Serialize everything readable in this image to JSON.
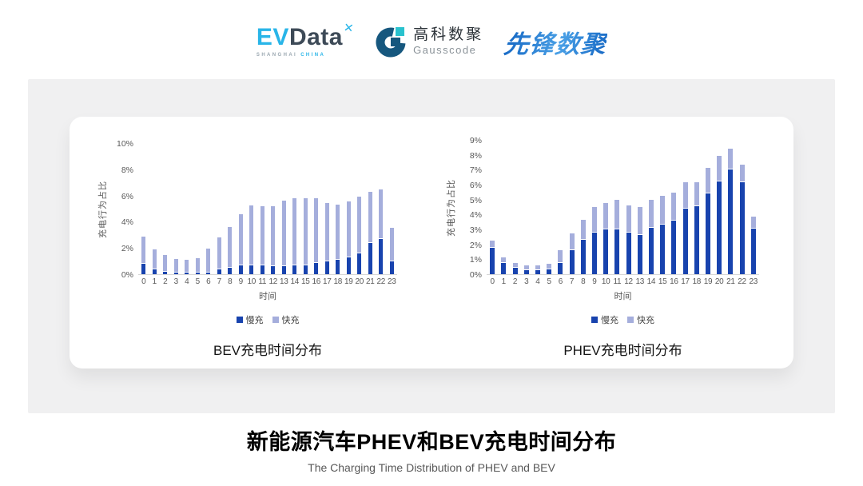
{
  "header": {
    "evdata": {
      "ev": "EV",
      "data": "Data",
      "mark": "✕",
      "tagline_left": "SHANGHAI",
      "tagline_right": "CHINA"
    },
    "gausscode": {
      "icon": "gausscode-g-icon",
      "name_cn": "高科数聚",
      "name_en": "Gausscode"
    },
    "pioneer": {
      "name": "先锋数聚"
    }
  },
  "footer": {
    "title": "新能源汽车PHEV和BEV充电时间分布",
    "subtitle": "The Charging Time Distribution of PHEV and BEV"
  },
  "colors": {
    "slow_charge": "#1843ae",
    "fast_charge": "#a5aedc",
    "axis_text": "#595959",
    "panel_gray": "#f0f0f1",
    "evdata_blue": "#29b5e8",
    "gauss_dark": "#16577e",
    "gauss_cyan": "#29c2ce",
    "pioneer_blue": "#2e86d8"
  },
  "chart_data": [
    {
      "type": "bar",
      "stacked": true,
      "title": "BEV充电时间分布",
      "xlabel": "时间",
      "ylabel": "充电行为占比",
      "ylim": [
        0,
        10
      ],
      "ytick_step": 2,
      "ytick_suffix": "%",
      "grid": false,
      "legend_position": "bottom",
      "categories": [
        "0",
        "1",
        "2",
        "3",
        "4",
        "5",
        "6",
        "7",
        "8",
        "9",
        "10",
        "11",
        "12",
        "13",
        "14",
        "15",
        "16",
        "17",
        "18",
        "19",
        "20",
        "21",
        "22",
        "23"
      ],
      "series": [
        {
          "name": "慢充",
          "color": "#1843ae",
          "values": [
            0.8,
            0.35,
            0.2,
            0.15,
            0.1,
            0.1,
            0.15,
            0.35,
            0.5,
            0.7,
            0.65,
            0.7,
            0.6,
            0.6,
            0.7,
            0.65,
            0.85,
            1.0,
            1.1,
            1.3,
            1.6,
            2.4,
            2.7,
            1.0
          ]
        },
        {
          "name": "快充",
          "color": "#a5aedc",
          "values": [
            2.1,
            1.55,
            1.3,
            1.05,
            1.0,
            1.1,
            1.85,
            2.45,
            3.1,
            3.9,
            4.55,
            4.5,
            4.6,
            5.0,
            5.1,
            5.15,
            4.95,
            4.45,
            4.2,
            4.25,
            4.3,
            3.9,
            3.8,
            2.55
          ]
        }
      ]
    },
    {
      "type": "bar",
      "stacked": true,
      "title": "PHEV充电时间分布",
      "xlabel": "时间",
      "ylabel": "充电行为占比",
      "ylim": [
        0,
        9
      ],
      "ytick_step": 1,
      "ytick_suffix": "%",
      "grid": false,
      "legend_position": "bottom",
      "categories": [
        "0",
        "1",
        "2",
        "3",
        "4",
        "5",
        "6",
        "7",
        "8",
        "9",
        "10",
        "11",
        "12",
        "13",
        "14",
        "15",
        "16",
        "17",
        "18",
        "19",
        "20",
        "21",
        "22",
        "23"
      ],
      "series": [
        {
          "name": "慢充",
          "color": "#1843ae",
          "values": [
            1.75,
            0.75,
            0.45,
            0.25,
            0.25,
            0.3,
            0.75,
            1.6,
            2.3,
            2.8,
            3.0,
            3.0,
            2.8,
            2.65,
            3.1,
            3.3,
            3.6,
            4.4,
            4.55,
            5.4,
            6.2,
            7.0,
            6.15,
            3.05
          ]
        },
        {
          "name": "快充",
          "color": "#a5aedc",
          "values": [
            0.5,
            0.4,
            0.3,
            0.3,
            0.3,
            0.4,
            0.85,
            1.15,
            1.35,
            1.7,
            1.75,
            2.0,
            1.8,
            1.85,
            1.9,
            1.95,
            1.9,
            1.75,
            1.6,
            1.7,
            1.7,
            1.4,
            1.2,
            0.8
          ]
        }
      ]
    }
  ]
}
